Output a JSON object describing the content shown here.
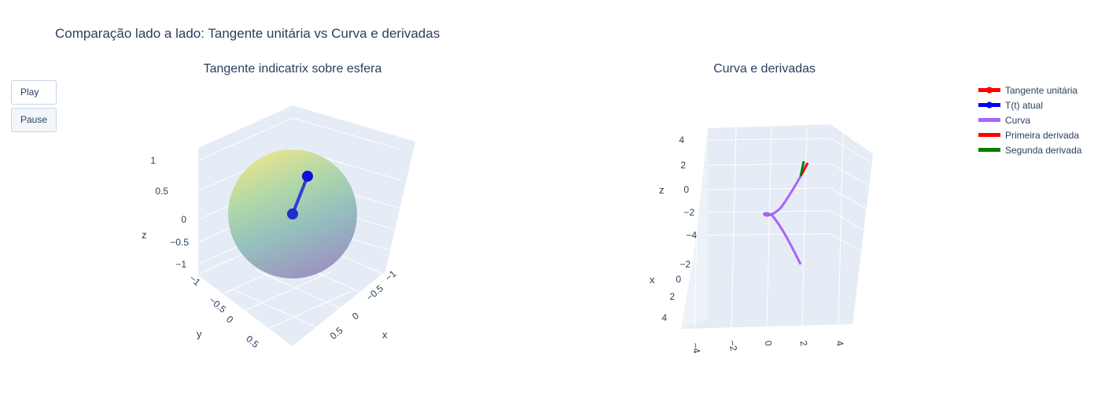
{
  "title": "Comparação lado a lado: Tangente unitária vs Curva e derivadas",
  "controls": {
    "play_label": "Play",
    "pause_label": "Pause"
  },
  "legend": [
    {
      "label": "Tangente unitária",
      "color": "#ff0000",
      "marker": true
    },
    {
      "label": "T(t) atual",
      "color": "#0000ff",
      "marker": true
    },
    {
      "label": "Curva",
      "color": "#ab63fa",
      "marker": false
    },
    {
      "label": "Primeira derivada",
      "color": "#ff0000",
      "marker": false
    },
    {
      "label": "Segunda derivada",
      "color": "#008000",
      "marker": false
    }
  ],
  "chart_data": [
    {
      "type": "scatter3d",
      "title": "Tangente indicatrix sobre esfera",
      "surface": "unit sphere",
      "surface_colorscale": [
        "#fde725",
        "#35b779",
        "#31688e",
        "#440154"
      ],
      "axes": {
        "x": {
          "label": "x",
          "range": [
            -1,
            1
          ],
          "ticks": [
            "−1",
            "−0.5",
            "0",
            "0.5"
          ]
        },
        "y": {
          "label": "y",
          "range": [
            -1,
            1
          ],
          "ticks": [
            "−1",
            "−0.5",
            "0",
            "0.5"
          ]
        },
        "z": {
          "label": "z",
          "range": [
            -1,
            1
          ],
          "ticks": [
            "−1",
            "−0.5",
            "0",
            "0.5",
            "1"
          ]
        }
      },
      "series": [
        {
          "name": "T(t) atual",
          "color": "#0000ff",
          "points": [
            {
              "x": 0,
              "y": 0,
              "z": 0
            },
            {
              "x": 0.1,
              "y": -0.45,
              "z": 0.55
            }
          ]
        }
      ]
    },
    {
      "type": "scatter3d",
      "title": "Curva e derivadas",
      "axes": {
        "x": {
          "label": "x",
          "range": [
            -5,
            5
          ],
          "ticks": [
            "−2",
            "0",
            "2",
            "4"
          ]
        },
        "y": {
          "label": "",
          "range": [
            -5,
            5
          ],
          "ticks": [
            "−4",
            "−2",
            "0",
            "2",
            "4"
          ]
        },
        "z": {
          "label": "z",
          "range": [
            -5,
            5
          ],
          "ticks": [
            "−4",
            "−2",
            "0",
            "2",
            "4"
          ]
        }
      },
      "series": [
        {
          "name": "Curva",
          "color": "#ab63fa"
        },
        {
          "name": "Primeira derivada",
          "color": "#ff0000"
        },
        {
          "name": "Segunda derivada",
          "color": "#008000"
        }
      ]
    }
  ]
}
